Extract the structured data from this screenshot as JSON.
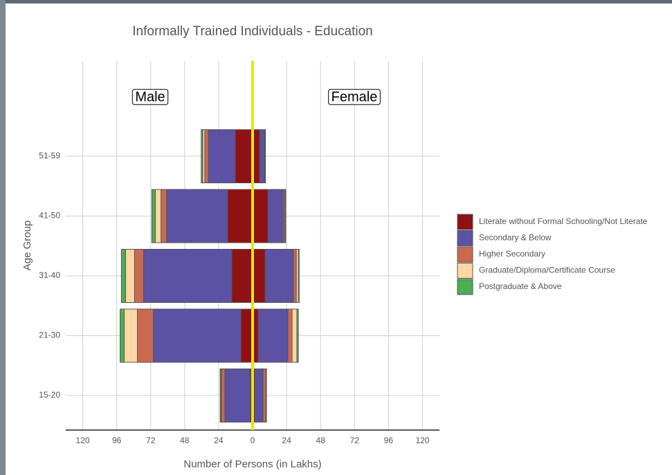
{
  "chart_data": {
    "type": "pyramid",
    "title": "Informally Trained Individuals - Education",
    "x_label": "Number of Persons (in Lakhs)",
    "y_label": "Age Group",
    "annotations": [
      "Male",
      "Female"
    ],
    "categories": [
      "15-20",
      "21-30",
      "31-40",
      "41-50",
      "51-59"
    ],
    "series": [
      {
        "name": "Literate without Formal Schooling/Not Literate",
        "color": "#8f1111",
        "male": [
          -1.5,
          -8.3,
          -14.7,
          -17.6,
          -12.2
        ],
        "female": [
          1.5,
          3.9,
          8.8,
          10.8,
          5
        ]
      },
      {
        "name": "Secondary & Below",
        "color": "#5b52a3",
        "male": [
          -18.1,
          -61.8,
          -62.3,
          -43.1,
          -19.1
        ],
        "female": [
          5.9,
          21.1,
          20.1,
          10.8,
          3.5
        ]
      },
      {
        "name": "Higher Secondary",
        "color": "#c96a50",
        "male": [
          -2.5,
          -11.3,
          -6.4,
          -4,
          -2.5
        ],
        "female": [
          2,
          2.9,
          2,
          1,
          0.3
        ]
      },
      {
        "name": "Graduate/Diploma/Certificate Course",
        "color": "#fdd6a6",
        "male": [
          -0.5,
          -9.3,
          -6.4,
          -4,
          -1.5
        ],
        "female": [
          0.3,
          3.4,
          1.5,
          0.5,
          0.2
        ]
      },
      {
        "name": "Postgraduate & Above",
        "color": "#4caf50",
        "male": [
          -0.3,
          -2.9,
          -2.9,
          -2.5,
          -1
        ],
        "female": [
          0.1,
          1,
          0.5,
          0.3,
          0.1
        ]
      }
    ],
    "xlim": [
      -132,
      132
    ],
    "xticks": [
      {
        "value": -120,
        "label": "120"
      },
      {
        "value": -96,
        "label": "96"
      },
      {
        "value": -72,
        "label": "72"
      },
      {
        "value": -48,
        "label": "48"
      },
      {
        "value": -24,
        "label": "24"
      },
      0,
      24,
      48,
      72,
      96,
      120
    ],
    "grid": true,
    "legend": "right",
    "center_line_color": "#e8e41c"
  }
}
